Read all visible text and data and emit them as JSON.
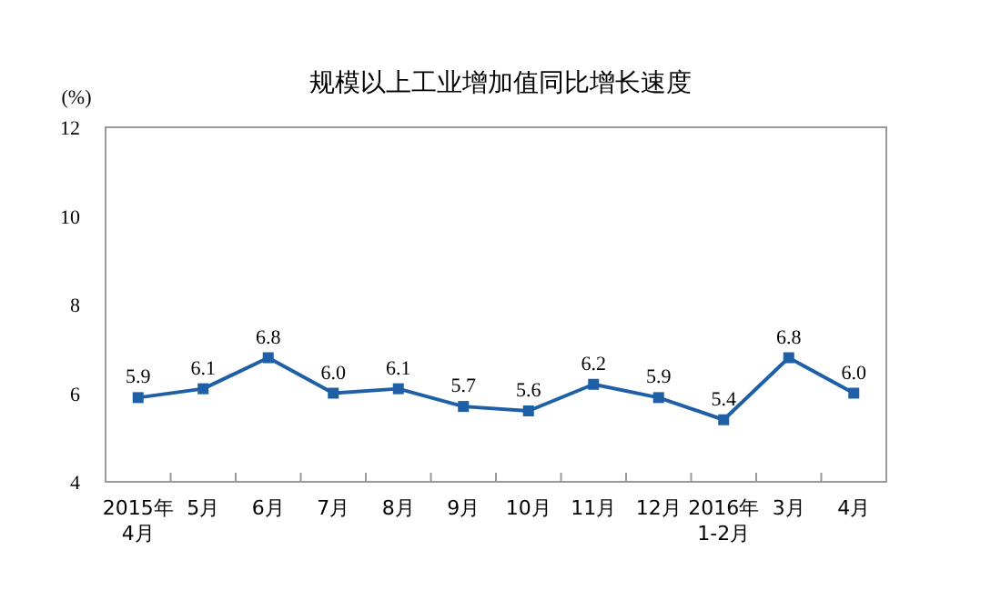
{
  "chart_data": {
    "type": "line",
    "title": "规模以上工业增加值同比增长速度",
    "ylabel": "(%)",
    "categories": [
      "2015年\n4月",
      "5月",
      "6月",
      "7月",
      "8月",
      "9月",
      "10月",
      "11月",
      "12月",
      "2016年\n1-2月",
      "3月",
      "4月"
    ],
    "series": [
      {
        "color": "#1f5fa6",
        "values": [
          5.9,
          6.1,
          6.8,
          6.0,
          6.1,
          5.7,
          5.6,
          6.2,
          5.9,
          5.4,
          6.8,
          6.0
        ],
        "value_labels": [
          "5.9",
          "6.1",
          "6.8",
          "6.0",
          "6.1",
          "5.7",
          "5.6",
          "6.2",
          "5.9",
          "5.4",
          "6.8",
          "6.0"
        ]
      }
    ],
    "ylim": [
      4,
      12
    ],
    "yticks": [
      4,
      6,
      8,
      10,
      12
    ],
    "marker": "square"
  }
}
